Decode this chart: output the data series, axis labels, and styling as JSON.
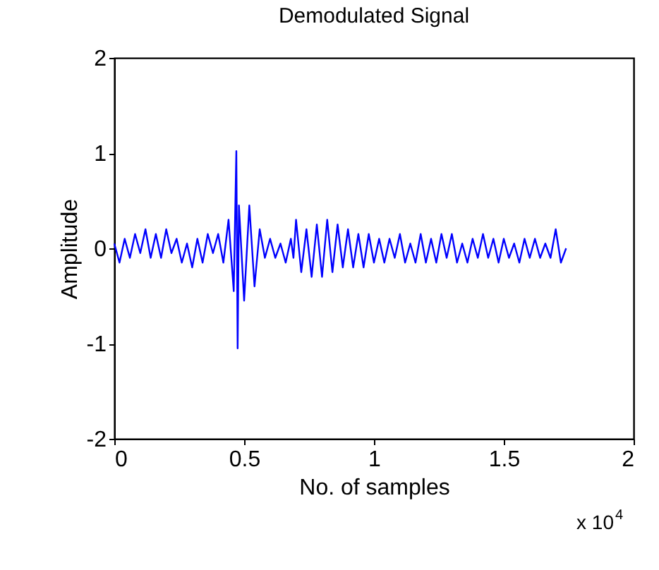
{
  "chart_data": {
    "type": "line",
    "title": "Demodulated Signal",
    "xlabel": "No. of samples",
    "ylabel": "Amplitude",
    "annotations": [
      "x 10$^{4}$"
    ],
    "x": [
      0,
      0.02,
      0.04,
      0.06,
      0.08,
      0.1,
      0.12,
      0.14,
      0.16,
      0.18,
      0.2,
      0.22,
      0.24,
      0.26,
      0.28,
      0.3,
      0.32,
      0.34,
      0.36,
      0.38,
      0.4,
      0.42,
      0.44,
      0.46,
      0.47,
      0.475,
      0.48,
      0.5,
      0.52,
      0.54,
      0.56,
      0.58,
      0.6,
      0.62,
      0.64,
      0.66,
      0.68,
      0.69,
      0.7,
      0.72,
      0.74,
      0.76,
      0.78,
      0.8,
      0.82,
      0.84,
      0.86,
      0.88,
      0.9,
      0.92,
      0.94,
      0.96,
      0.98,
      1.0,
      1.02,
      1.04,
      1.06,
      1.08,
      1.1,
      1.12,
      1.14,
      1.16,
      1.18,
      1.2,
      1.22,
      1.24,
      1.26,
      1.28,
      1.3,
      1.32,
      1.34,
      1.36,
      1.38,
      1.4,
      1.42,
      1.44,
      1.46,
      1.48,
      1.5,
      1.52,
      1.54,
      1.56,
      1.58,
      1.6,
      1.62,
      1.64,
      1.66,
      1.68,
      1.7,
      1.72,
      1.74
    ],
    "series": [
      {
        "color": "#0000ff",
        "values": [
          0.05,
          -0.15,
          0.1,
          -0.1,
          0.15,
          -0.05,
          0.2,
          -0.1,
          0.15,
          -0.1,
          0.2,
          -0.05,
          0.1,
          -0.15,
          0.05,
          -0.2,
          0.1,
          -0.15,
          0.15,
          -0.05,
          0.15,
          -0.15,
          0.3,
          -0.45,
          1.02,
          -1.05,
          0.45,
          -0.55,
          0.45,
          -0.4,
          0.2,
          -0.1,
          0.1,
          -0.1,
          0.05,
          -0.15,
          0.1,
          -0.1,
          0.3,
          -0.25,
          0.2,
          -0.3,
          0.25,
          -0.3,
          0.3,
          -0.25,
          0.25,
          -0.2,
          0.2,
          -0.2,
          0.15,
          -0.2,
          0.15,
          -0.15,
          0.1,
          -0.15,
          0.1,
          -0.1,
          0.15,
          -0.15,
          0.05,
          -0.15,
          0.15,
          -0.15,
          0.1,
          -0.15,
          0.15,
          -0.1,
          0.15,
          -0.15,
          0.05,
          -0.15,
          0.1,
          -0.1,
          0.15,
          -0.1,
          0.1,
          -0.15,
          0.1,
          -0.1,
          0.05,
          -0.15,
          0.1,
          -0.1,
          0.1,
          -0.1,
          0.05,
          -0.1,
          0.2,
          -0.15,
          0
        ]
      }
    ],
    "xlim": [
      0,
      2
    ],
    "xticks": [
      0,
      0.5,
      1,
      1.5,
      2
    ],
    "ylim": [
      -2,
      2
    ],
    "yticks": [
      -2,
      -1,
      0,
      1,
      2
    ],
    "grid": false,
    "marker": "none",
    "line_style": "solid"
  }
}
